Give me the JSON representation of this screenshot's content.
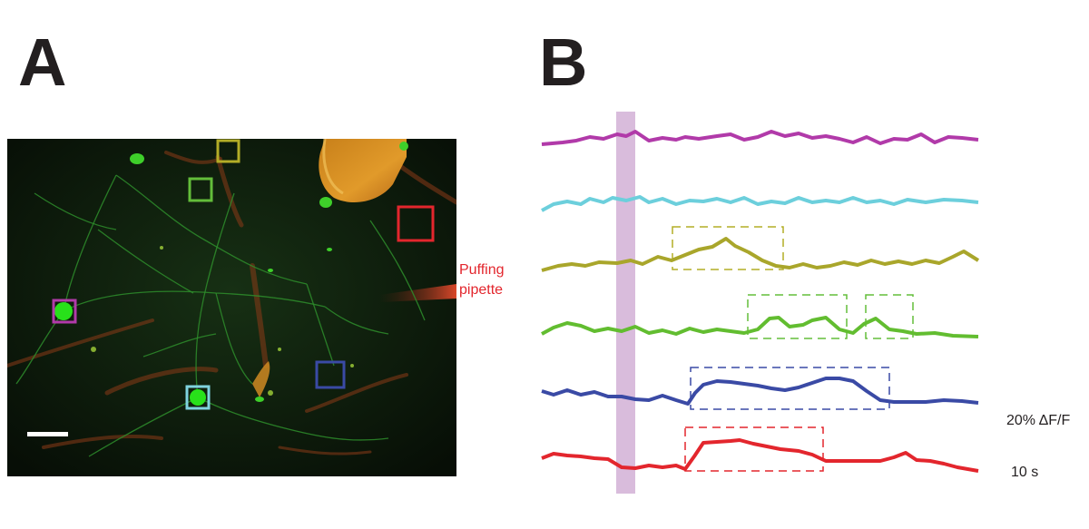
{
  "panels": {
    "a_label": "A",
    "b_label": "B"
  },
  "micrograph": {
    "pipette_label_line1": "Puffing",
    "pipette_label_line2": "pipette",
    "roi_colors": [
      "#b13aa9",
      "#7fd3de",
      "#b3ad27",
      "#63bd3a",
      "#3a4aa5",
      "#e3262d"
    ]
  },
  "traces": {
    "series": [
      {
        "color": "#b13aa9",
        "has_response": false
      },
      {
        "color": "#6ccfdc",
        "has_response": false
      },
      {
        "color": "#a9a62b",
        "has_response": true
      },
      {
        "color": "#62bd30",
        "has_response": true
      },
      {
        "color": "#3a4aa5",
        "has_response": true
      },
      {
        "color": "#e3262d",
        "has_response": true
      }
    ],
    "stimulus_bar_color": "#d9bcdc"
  },
  "scalebar": {
    "y_label": "20% ΔF/F",
    "x_label": "10 s"
  }
}
